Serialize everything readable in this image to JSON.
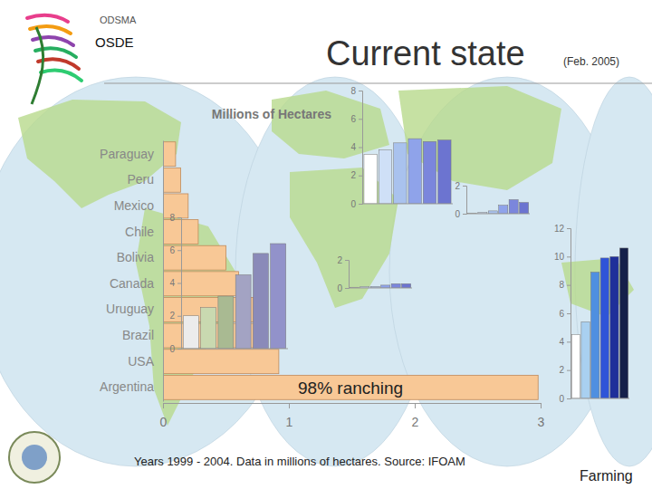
{
  "page": {
    "org": "ODSMA",
    "unit": "OSDE",
    "title": "Current state",
    "date": "(Feb. 2005)",
    "note": "Years 1999 - 2004. Data in millions of hectares. Source: IFOAM",
    "corner": "Farming"
  },
  "chart_data": [
    {
      "type": "bar",
      "orientation": "horizontal",
      "title": "Millions of Hectares",
      "annotation": "98% ranching",
      "categories": [
        "Paraguay",
        "Peru",
        "Mexico",
        "Chile",
        "Bolivia",
        "Canada",
        "Uruguay",
        "Brazil",
        "USA",
        "Argentina"
      ],
      "values": [
        0.1,
        0.14,
        0.2,
        0.28,
        0.5,
        0.6,
        0.72,
        0.8,
        0.92,
        2.98
      ],
      "color": "#f8c896",
      "xlim": [
        0,
        3
      ],
      "xticks": [
        0,
        1,
        2,
        3
      ]
    },
    {
      "type": "bar",
      "categories": [
        null,
        null,
        null,
        null,
        null,
        null
      ],
      "values": [
        2.0,
        2.5,
        3.2,
        4.5,
        5.8,
        6.4
      ],
      "colors": [
        "#ececec",
        "#c9d9b0",
        "#a9ba92",
        "#a3a3c3",
        "#8a8ab9",
        "#9292ca"
      ],
      "ylim": [
        0,
        8
      ],
      "yticks": [
        0,
        2,
        4,
        6,
        8
      ],
      "tick_labels": "y"
    },
    {
      "type": "bar",
      "categories": [
        null,
        null,
        null,
        null,
        null,
        null
      ],
      "values": [
        3.5,
        3.8,
        4.3,
        4.6,
        4.4,
        4.5
      ],
      "colors": [
        "#ffffff",
        "#cfe0f7",
        "#a9c2ee",
        "#8fa3ea",
        "#7b86dc",
        "#6c74d0"
      ],
      "ylim": [
        0,
        8
      ],
      "yticks": [
        0,
        2,
        4,
        6,
        8
      ],
      "tick_labels": "y"
    },
    {
      "type": "bar",
      "categories": [
        null,
        null,
        null,
        null,
        null,
        null
      ],
      "values": [
        0.05,
        0.1,
        0.2,
        0.6,
        1.0,
        0.8
      ],
      "colors": [
        "#ffffff",
        "#cfe0f7",
        "#a9c2ee",
        "#8fa3ea",
        "#7b86dc",
        "#6c74d0"
      ],
      "ylim": [
        0,
        2
      ],
      "yticks": [
        0,
        2
      ],
      "tick_labels": "y"
    },
    {
      "type": "bar",
      "categories": [
        null,
        null,
        null,
        null,
        null,
        null
      ],
      "values": [
        0.05,
        0.1,
        0.1,
        0.2,
        0.3,
        0.3
      ],
      "colors": [
        "#ffffff",
        "#cfe0f7",
        "#a9c2ee",
        "#8fa3ea",
        "#7b86dc",
        "#6c74d0"
      ],
      "ylim": [
        0,
        2
      ],
      "yticks": [
        0,
        2
      ],
      "tick_labels": "y"
    },
    {
      "type": "bar",
      "categories": [
        null,
        null,
        null,
        null,
        null,
        null
      ],
      "values": [
        4.5,
        5.4,
        8.9,
        9.9,
        10.0,
        10.6
      ],
      "colors": [
        "#ffffff",
        "#a9d0f0",
        "#4f8fe0",
        "#2f54d8",
        "#1f2f9a",
        "#15204a"
      ],
      "ylim": [
        0,
        12
      ],
      "yticks": [
        0,
        2,
        4,
        6,
        8,
        10,
        12
      ],
      "tick_labels": "y"
    }
  ]
}
